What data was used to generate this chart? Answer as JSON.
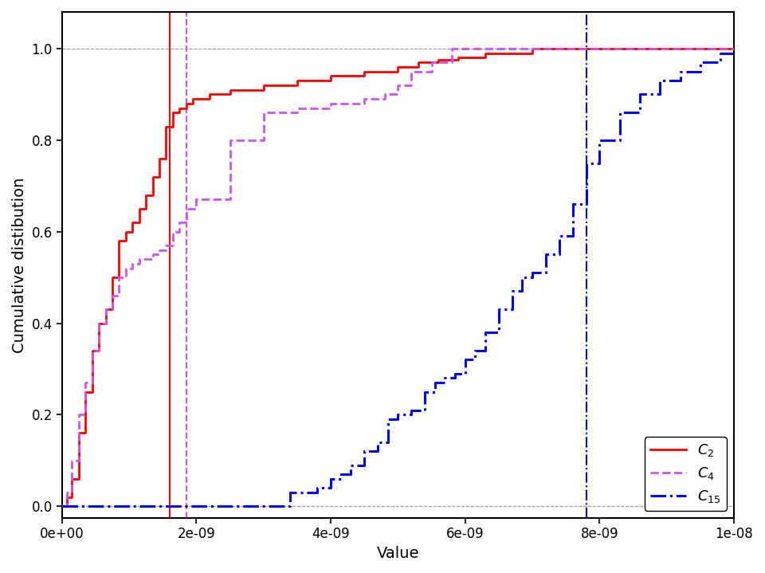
{
  "xlabel": "Value",
  "ylabel": "Cumulative distibution",
  "xlim": [
    0,
    1e-08
  ],
  "ylim": [
    -0.025,
    1.08
  ],
  "vline_red": 1.6e-09,
  "vline_purple": 1.85e-09,
  "vline_blue": 7.8e-09,
  "c2_x": [
    0,
    4e-11,
    8e-11,
    1.5e-10,
    2.5e-10,
    3.5e-10,
    4.5e-10,
    5.5e-10,
    6.5e-10,
    7.5e-10,
    8.5e-10,
    9.5e-10,
    1.05e-09,
    1.15e-09,
    1.25e-09,
    1.35e-09,
    1.45e-09,
    1.55e-09,
    1.65e-09,
    1.75e-09,
    1.85e-09,
    1.95e-09,
    2.2e-09,
    2.5e-09,
    3e-09,
    3.5e-09,
    4e-09,
    4.5e-09,
    5e-09,
    5.3e-09,
    5.6e-09,
    5.9e-09,
    6.3e-09,
    7e-09,
    8e-09,
    1e-08
  ],
  "c2_y": [
    0.0,
    0.0,
    0.02,
    0.06,
    0.16,
    0.25,
    0.34,
    0.4,
    0.43,
    0.5,
    0.58,
    0.6,
    0.62,
    0.65,
    0.68,
    0.72,
    0.76,
    0.83,
    0.86,
    0.87,
    0.88,
    0.89,
    0.9,
    0.91,
    0.92,
    0.93,
    0.94,
    0.95,
    0.96,
    0.97,
    0.975,
    0.98,
    0.99,
    1.0,
    1.0,
    1.0
  ],
  "c4_x": [
    0,
    4e-11,
    8e-11,
    1.5e-10,
    2.5e-10,
    3.5e-10,
    4.5e-10,
    5.5e-10,
    6.5e-10,
    7.5e-10,
    8.5e-10,
    9.5e-10,
    1.05e-09,
    1.15e-09,
    1.25e-09,
    1.35e-09,
    1.45e-09,
    1.55e-09,
    1.65e-09,
    1.75e-09,
    1.85e-09,
    2e-09,
    2.5e-09,
    3e-09,
    3.5e-09,
    4e-09,
    4.5e-09,
    4.8e-09,
    5e-09,
    5.2e-09,
    5.5e-09,
    5.8e-09,
    1e-08
  ],
  "c4_y": [
    0.0,
    0.0,
    0.03,
    0.1,
    0.2,
    0.27,
    0.34,
    0.4,
    0.43,
    0.46,
    0.5,
    0.52,
    0.53,
    0.54,
    0.54,
    0.55,
    0.56,
    0.57,
    0.6,
    0.62,
    0.65,
    0.67,
    0.8,
    0.86,
    0.87,
    0.88,
    0.89,
    0.9,
    0.92,
    0.95,
    0.97,
    1.0,
    1.0
  ],
  "c15_x": [
    0,
    1e-09,
    2e-09,
    3e-09,
    3.4e-09,
    3.8e-09,
    4e-09,
    4.15e-09,
    4.3e-09,
    4.5e-09,
    4.7e-09,
    4.85e-09,
    5e-09,
    5.2e-09,
    5.4e-09,
    5.55e-09,
    5.7e-09,
    5.85e-09,
    6e-09,
    6.15e-09,
    6.3e-09,
    6.5e-09,
    6.7e-09,
    6.85e-09,
    7e-09,
    7.2e-09,
    7.4e-09,
    7.6e-09,
    7.8e-09,
    8e-09,
    8.3e-09,
    8.6e-09,
    8.9e-09,
    9.2e-09,
    9.5e-09,
    9.8e-09,
    1e-08
  ],
  "c15_y": [
    0.0,
    0.0,
    0.0,
    0.0,
    0.03,
    0.04,
    0.06,
    0.07,
    0.09,
    0.12,
    0.14,
    0.19,
    0.2,
    0.21,
    0.25,
    0.27,
    0.28,
    0.29,
    0.32,
    0.34,
    0.38,
    0.43,
    0.47,
    0.5,
    0.51,
    0.55,
    0.59,
    0.66,
    0.75,
    0.8,
    0.86,
    0.9,
    0.93,
    0.95,
    0.97,
    0.99,
    1.0
  ]
}
